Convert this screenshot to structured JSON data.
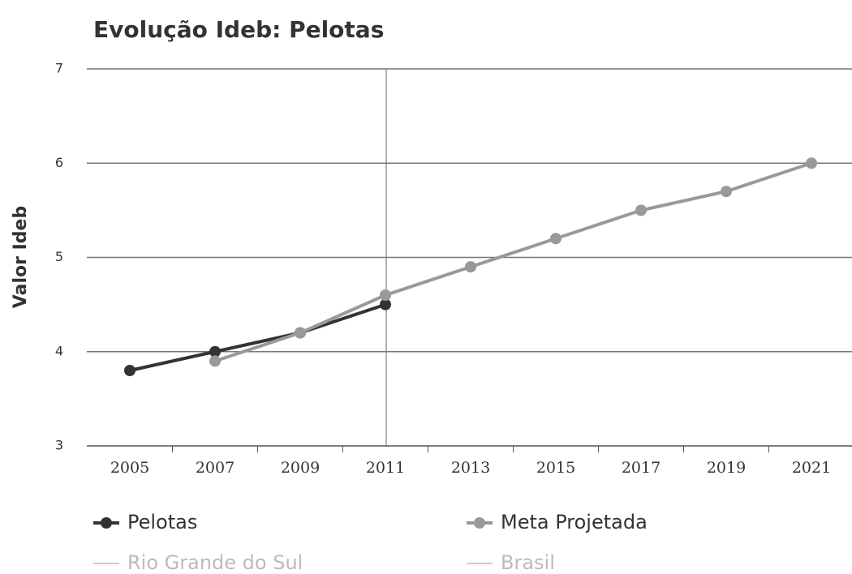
{
  "chart_data": {
    "type": "line",
    "title": "Evolução Ideb: Pelotas",
    "y_label": "Valor Ideb",
    "categories": [
      "2005",
      "2007",
      "2009",
      "2011",
      "2013",
      "2015",
      "2017",
      "2019",
      "2021"
    ],
    "series": [
      {
        "name": "Pelotas",
        "color": "#333333",
        "visible": true,
        "values": [
          3.8,
          4.0,
          4.2,
          4.5,
          null,
          null,
          null,
          null,
          null
        ]
      },
      {
        "name": "Meta Projetada",
        "color": "#999999",
        "visible": true,
        "values": [
          null,
          3.9,
          4.2,
          4.6,
          4.9,
          5.2,
          5.5,
          5.7,
          6.0
        ]
      },
      {
        "name": "Rio Grande do Sul",
        "color": "#cccccc",
        "visible": false,
        "values": [
          null,
          null,
          null,
          null,
          null,
          null,
          null,
          null,
          null
        ]
      },
      {
        "name": "Brasil",
        "color": "#aaaaaa",
        "visible": false,
        "values": [
          null,
          null,
          null,
          null,
          null,
          null,
          null,
          null,
          null
        ]
      }
    ],
    "ylim": [
      3,
      7
    ],
    "yticks": [
      3,
      4,
      5,
      6,
      7
    ],
    "grid": true
  }
}
